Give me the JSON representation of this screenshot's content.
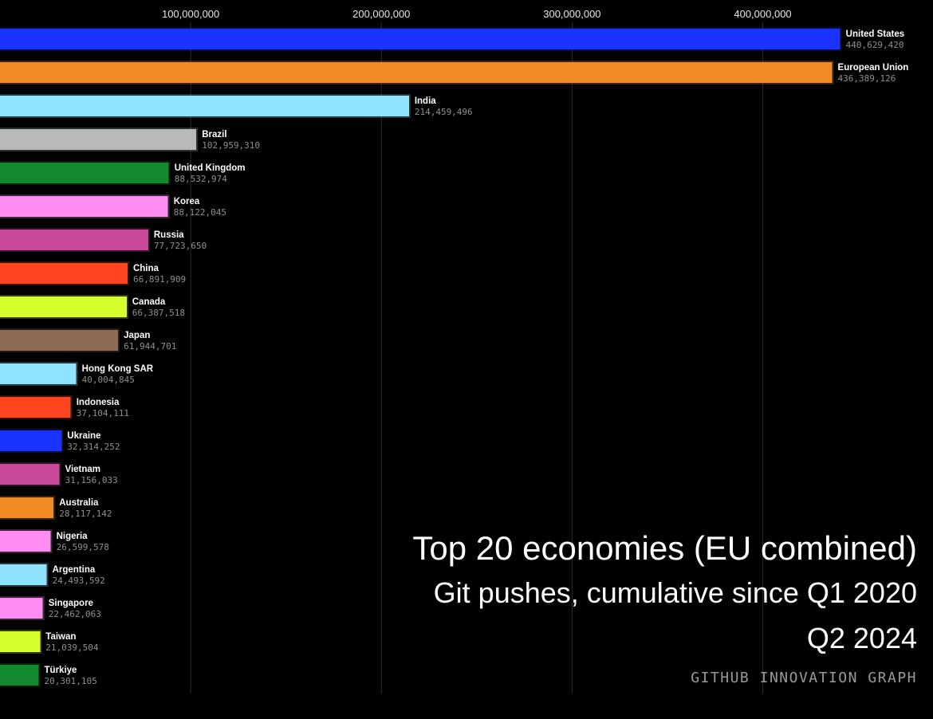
{
  "caption": {
    "title": "Top 20 economies (EU combined)",
    "subtitle": "Git pushes, cumulative since Q1 2020",
    "period": "Q2 2024",
    "source": "GITHUB INNOVATION GRAPH"
  },
  "chart_data": {
    "type": "bar",
    "orientation": "horizontal",
    "title": "Top 20 economies (EU combined)",
    "subtitle": "Git pushes, cumulative since Q1 2020",
    "xlim": [
      0,
      460000000
    ],
    "xticks": [
      100000000,
      200000000,
      300000000,
      400000000
    ],
    "xtick_labels": [
      "100,000,000",
      "200,000,000",
      "300,000,000",
      "400,000,000"
    ],
    "grid": true,
    "categories": [
      "United States",
      "European Union",
      "India",
      "Brazil",
      "United Kingdom",
      "Korea",
      "Russia",
      "China",
      "Canada",
      "Japan",
      "Hong Kong SAR",
      "Indonesia",
      "Ukraine",
      "Vietnam",
      "Australia",
      "Nigeria",
      "Argentina",
      "Singapore",
      "Taiwan",
      "Türkiye"
    ],
    "values": [
      440629420,
      436389126,
      214459496,
      102959310,
      88532974,
      88122045,
      77723650,
      66891909,
      66387518,
      61944701,
      40004845,
      37104111,
      32314252,
      31156033,
      28117142,
      26599578,
      24493592,
      22462063,
      21039504,
      20301105
    ],
    "value_labels": [
      "440,629,420",
      "436,389,126",
      "214,459,496",
      "102,959,310",
      "88,532,974",
      "88,122,045",
      "77,723,650",
      "66,891,909",
      "66,387,518",
      "61,944,701",
      "40,004,845",
      "37,104,111",
      "32,314,252",
      "31,156,033",
      "28,117,142",
      "26,599,578",
      "24,493,592",
      "22,462,063",
      "21,039,504",
      "20,301,105"
    ],
    "colors": [
      "#1a33ff",
      "#f08a24",
      "#8fe3ff",
      "#b8bab8",
      "#138a2e",
      "#ff8cf0",
      "#c94a9a",
      "#ff4520",
      "#d6ff2e",
      "#8f6a55",
      "#8fe3ff",
      "#ff4520",
      "#1a33ff",
      "#c94a9a",
      "#f08a24",
      "#ff8cf0",
      "#8fe3ff",
      "#ff8cf0",
      "#d6ff2e",
      "#138a2e"
    ]
  }
}
